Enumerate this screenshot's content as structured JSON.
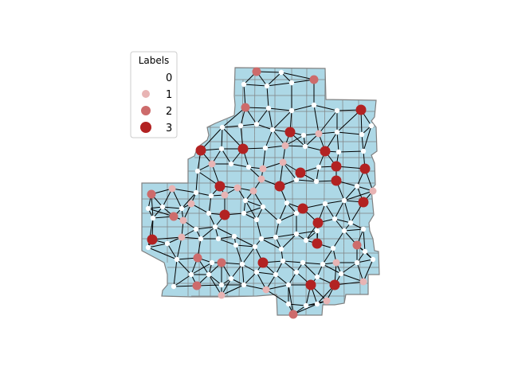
{
  "legend": {
    "title": "Labels",
    "entries": [
      {
        "label": "0",
        "color": "#ffffff"
      },
      {
        "label": "1",
        "color": "#e8b4b4"
      },
      {
        "label": "2",
        "color": "#cd6b6b"
      },
      {
        "label": "3",
        "color": "#b22222"
      }
    ]
  },
  "colors": {
    "region_fill": "#add8e6",
    "region_stroke": "#808080",
    "edge": "#000000"
  }
}
